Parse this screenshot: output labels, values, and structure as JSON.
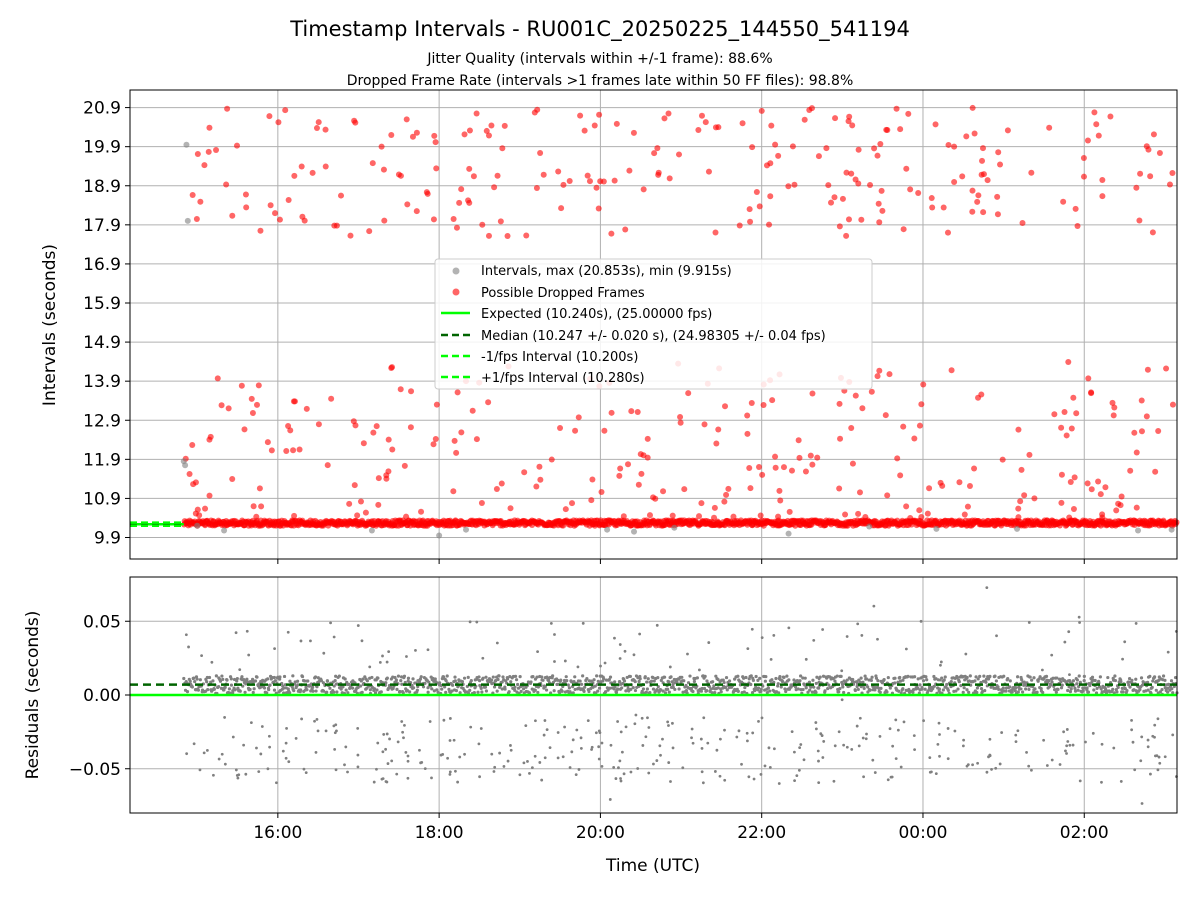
{
  "figure": {
    "title": "Timestamp Intervals - RU001C_20250225_144550_541194",
    "subtitle_1": "Jitter Quality (intervals within +/-1 frame): 88.6%",
    "subtitle_2": "Dropped Frame Rate (intervals >1 frames late within 50 FF files): 98.8%"
  },
  "chart_data": [
    {
      "type": "scatter",
      "ylabel": "Intervals (seconds)",
      "y_ticks": [
        9.9,
        10.9,
        11.9,
        12.9,
        13.9,
        14.9,
        15.9,
        16.9,
        17.9,
        18.9,
        19.9,
        20.9
      ],
      "y_tick_labels": [
        "9.9",
        "10.9",
        "11.9",
        "12.9",
        "13.9",
        "14.9",
        "15.9",
        "16.9",
        "17.9",
        "18.9",
        "19.9",
        "20.9"
      ],
      "ylim": [
        9.35,
        21.35
      ],
      "xlim": [
        "14:10",
        "03:09"
      ],
      "grid": true,
      "legend_placement": "center",
      "colors": {
        "intervals": "#808080",
        "dropped": "#ff0000",
        "expected": "#00ff00",
        "median": "#006400",
        "fps_bounds": "#00ff00"
      },
      "series": [
        {
          "name": "Intervals, max (20.853s), min (9.915s)",
          "kind": "scatter",
          "color": "#808080"
        },
        {
          "name": "Possible Dropped Frames",
          "kind": "scatter",
          "color": "#ff0000"
        },
        {
          "name": "Expected (10.240s), (25.00000 fps)",
          "kind": "line",
          "y": 10.24,
          "color": "#00ff00"
        },
        {
          "name": "Median (10.247 +/- 0.020 s), (24.98305 +/- 0.04 fps)",
          "kind": "dashed",
          "y": 10.247,
          "color": "#006400"
        },
        {
          "name": "-1/fps Interval (10.200s)",
          "kind": "dashed",
          "y": 10.2,
          "color": "#00ff00"
        },
        {
          "name": "+1/fps Interval (10.280s)",
          "kind": "dashed",
          "y": 10.28,
          "color": "#00ff00"
        }
      ],
      "gray_points": [
        {
          "x": "14:50",
          "y": 11.85
        },
        {
          "x": "14:51",
          "y": 11.75
        },
        {
          "x": "14:52",
          "y": 19.95
        },
        {
          "x": "14:53",
          "y": 18.0
        },
        {
          "x": "15:00",
          "y": 10.2
        },
        {
          "x": "15:20",
          "y": 10.08
        },
        {
          "x": "17:10",
          "y": 10.08
        },
        {
          "x": "18:00",
          "y": 9.95
        },
        {
          "x": "18:20",
          "y": 10.1
        },
        {
          "x": "20:05",
          "y": 10.1
        },
        {
          "x": "20:25",
          "y": 10.05
        },
        {
          "x": "20:55",
          "y": 10.15
        },
        {
          "x": "22:20",
          "y": 10.0
        },
        {
          "x": "23:20",
          "y": 10.18
        },
        {
          "x": "00:10",
          "y": 10.12
        },
        {
          "x": "01:10",
          "y": 10.12
        },
        {
          "x": "02:40",
          "y": 10.08
        },
        {
          "x": "03:05",
          "y": 10.1
        }
      ],
      "dropped_frames_band": {
        "x_start": "14:50",
        "x_end": "03:09",
        "y_center": 10.27,
        "y_spread": 0.07
      }
    },
    {
      "type": "scatter",
      "xlabel": "Time (UTC)",
      "ylabel": "Residuals (seconds)",
      "y_ticks": [
        -0.05,
        0.0,
        0.05
      ],
      "y_tick_labels": [
        "−0.05",
        "0.00",
        "0.05"
      ],
      "x_ticks": [
        "16:00",
        "18:00",
        "20:00",
        "22:00",
        "00:00",
        "02:00"
      ],
      "x_tick_labels": [
        "16:00",
        "18:00",
        "20:00",
        "22:00",
        "00:00",
        "02:00"
      ],
      "ylim": [
        -0.08,
        0.08
      ],
      "xlim": [
        "14:10",
        "03:09"
      ],
      "grid": true,
      "reference_lines": [
        {
          "y": 0.0,
          "style": "solid",
          "color": "#00ff00"
        },
        {
          "y": 0.007,
          "style": "dashed",
          "color": "#006400"
        }
      ],
      "residual_band": {
        "x_start": "14:50",
        "x_end": "03:09",
        "y_center": 0.007,
        "y_spread": 0.006,
        "color": "#808080"
      },
      "outlier_range": [
        -0.078,
        0.075
      ]
    }
  ]
}
